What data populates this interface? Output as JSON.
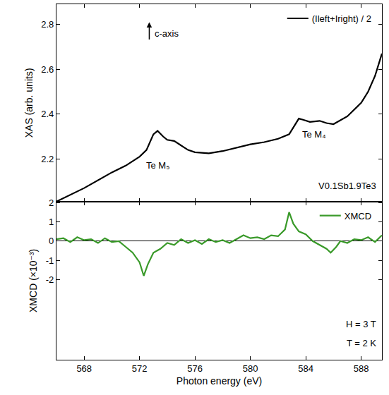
{
  "chart_data": [
    {
      "type": "line",
      "ylabel": "XAS (arb. units)",
      "xlim": [
        566,
        589.5
      ],
      "xticks": [
        568,
        572,
        576,
        580,
        584,
        588
      ],
      "ylim": [
        2.01,
        2.89
      ],
      "yticks": [
        2.2,
        2.4,
        2.6,
        2.8
      ],
      "tick_labels": "y",
      "grid": false,
      "legend": "top right",
      "series": [
        {
          "name": "(Ileft+Iright) / 2",
          "color": "#000000",
          "x": [
            566,
            568,
            570,
            571,
            572,
            572.5,
            573,
            573.3,
            573.7,
            574,
            574.5,
            575,
            575.5,
            576,
            577,
            578,
            579,
            580,
            581,
            582,
            582.8,
            583.2,
            583.5,
            583.8,
            584.3,
            585,
            585.5,
            586,
            587,
            588,
            588.5,
            589,
            589.5
          ],
          "values": [
            2.01,
            2.07,
            2.14,
            2.17,
            2.21,
            2.24,
            2.31,
            2.325,
            2.3,
            2.285,
            2.28,
            2.26,
            2.24,
            2.23,
            2.225,
            2.235,
            2.25,
            2.265,
            2.275,
            2.29,
            2.31,
            2.35,
            2.38,
            2.375,
            2.365,
            2.37,
            2.36,
            2.355,
            2.39,
            2.45,
            2.5,
            2.57,
            2.67
          ]
        }
      ],
      "annotations": [
        {
          "text": "Te M₅",
          "x": 573.3,
          "y": 2.17
        },
        {
          "text": "Te M₄",
          "x": 584.6,
          "y": 2.31
        },
        {
          "text": "V0.1Sb1.9Te3",
          "x": 589.2,
          "y": 2.08
        },
        {
          "text": "c-axis",
          "x": 573.0,
          "y": 2.76
        }
      ]
    },
    {
      "type": "line",
      "xlabel": "Photon energy (eV)",
      "ylabel": "XMCD (×10⁻³)",
      "xlim": [
        566,
        589.5
      ],
      "xticks": [
        568,
        572,
        576,
        580,
        584,
        588
      ],
      "ylim": [
        -6.15,
        2.05
      ],
      "yticks": [
        -2,
        -1,
        0,
        1,
        2
      ],
      "grid": false,
      "legend": "top right",
      "series": [
        {
          "name": "XMCD",
          "color": "#3a9a2a",
          "x": [
            566,
            566.5,
            567,
            567.5,
            568,
            568.5,
            569,
            569.5,
            570,
            570.5,
            571,
            571.5,
            572,
            572.3,
            572.6,
            573,
            573.5,
            574,
            574.5,
            575,
            575.5,
            576,
            576.5,
            577,
            577.5,
            578,
            578.5,
            579,
            579.5,
            580,
            580.5,
            581,
            581.5,
            582,
            582.5,
            582.8,
            583.1,
            583.5,
            584,
            584.5,
            585,
            585.5,
            585.8,
            586.2,
            586.5,
            587,
            587.5,
            588,
            588.5,
            589,
            589.5
          ],
          "values": [
            0.1,
            0.15,
            -0.05,
            0.2,
            0.05,
            0.1,
            -0.1,
            0.15,
            -0.05,
            0,
            -0.3,
            -0.6,
            -1.1,
            -1.8,
            -1.2,
            -0.6,
            -0.4,
            -0.1,
            -0.2,
            0.1,
            -0.1,
            0.05,
            -0.15,
            0.1,
            -0.05,
            0.05,
            -0.1,
            0.1,
            0.3,
            0.15,
            0.2,
            0.1,
            0.3,
            0.25,
            0.6,
            1.5,
            0.9,
            0.5,
            0.35,
            0,
            -0.2,
            -0.4,
            -0.6,
            -0.3,
            0,
            -0.1,
            0.1,
            0.05,
            0.2,
            -0.05,
            0.3
          ]
        }
      ],
      "annotations": [
        {
          "text": "H = 3 T",
          "x": 589.2,
          "y": -4.3
        },
        {
          "text": "T = 2 K",
          "x": 589.2,
          "y": -5.3
        }
      ]
    }
  ]
}
